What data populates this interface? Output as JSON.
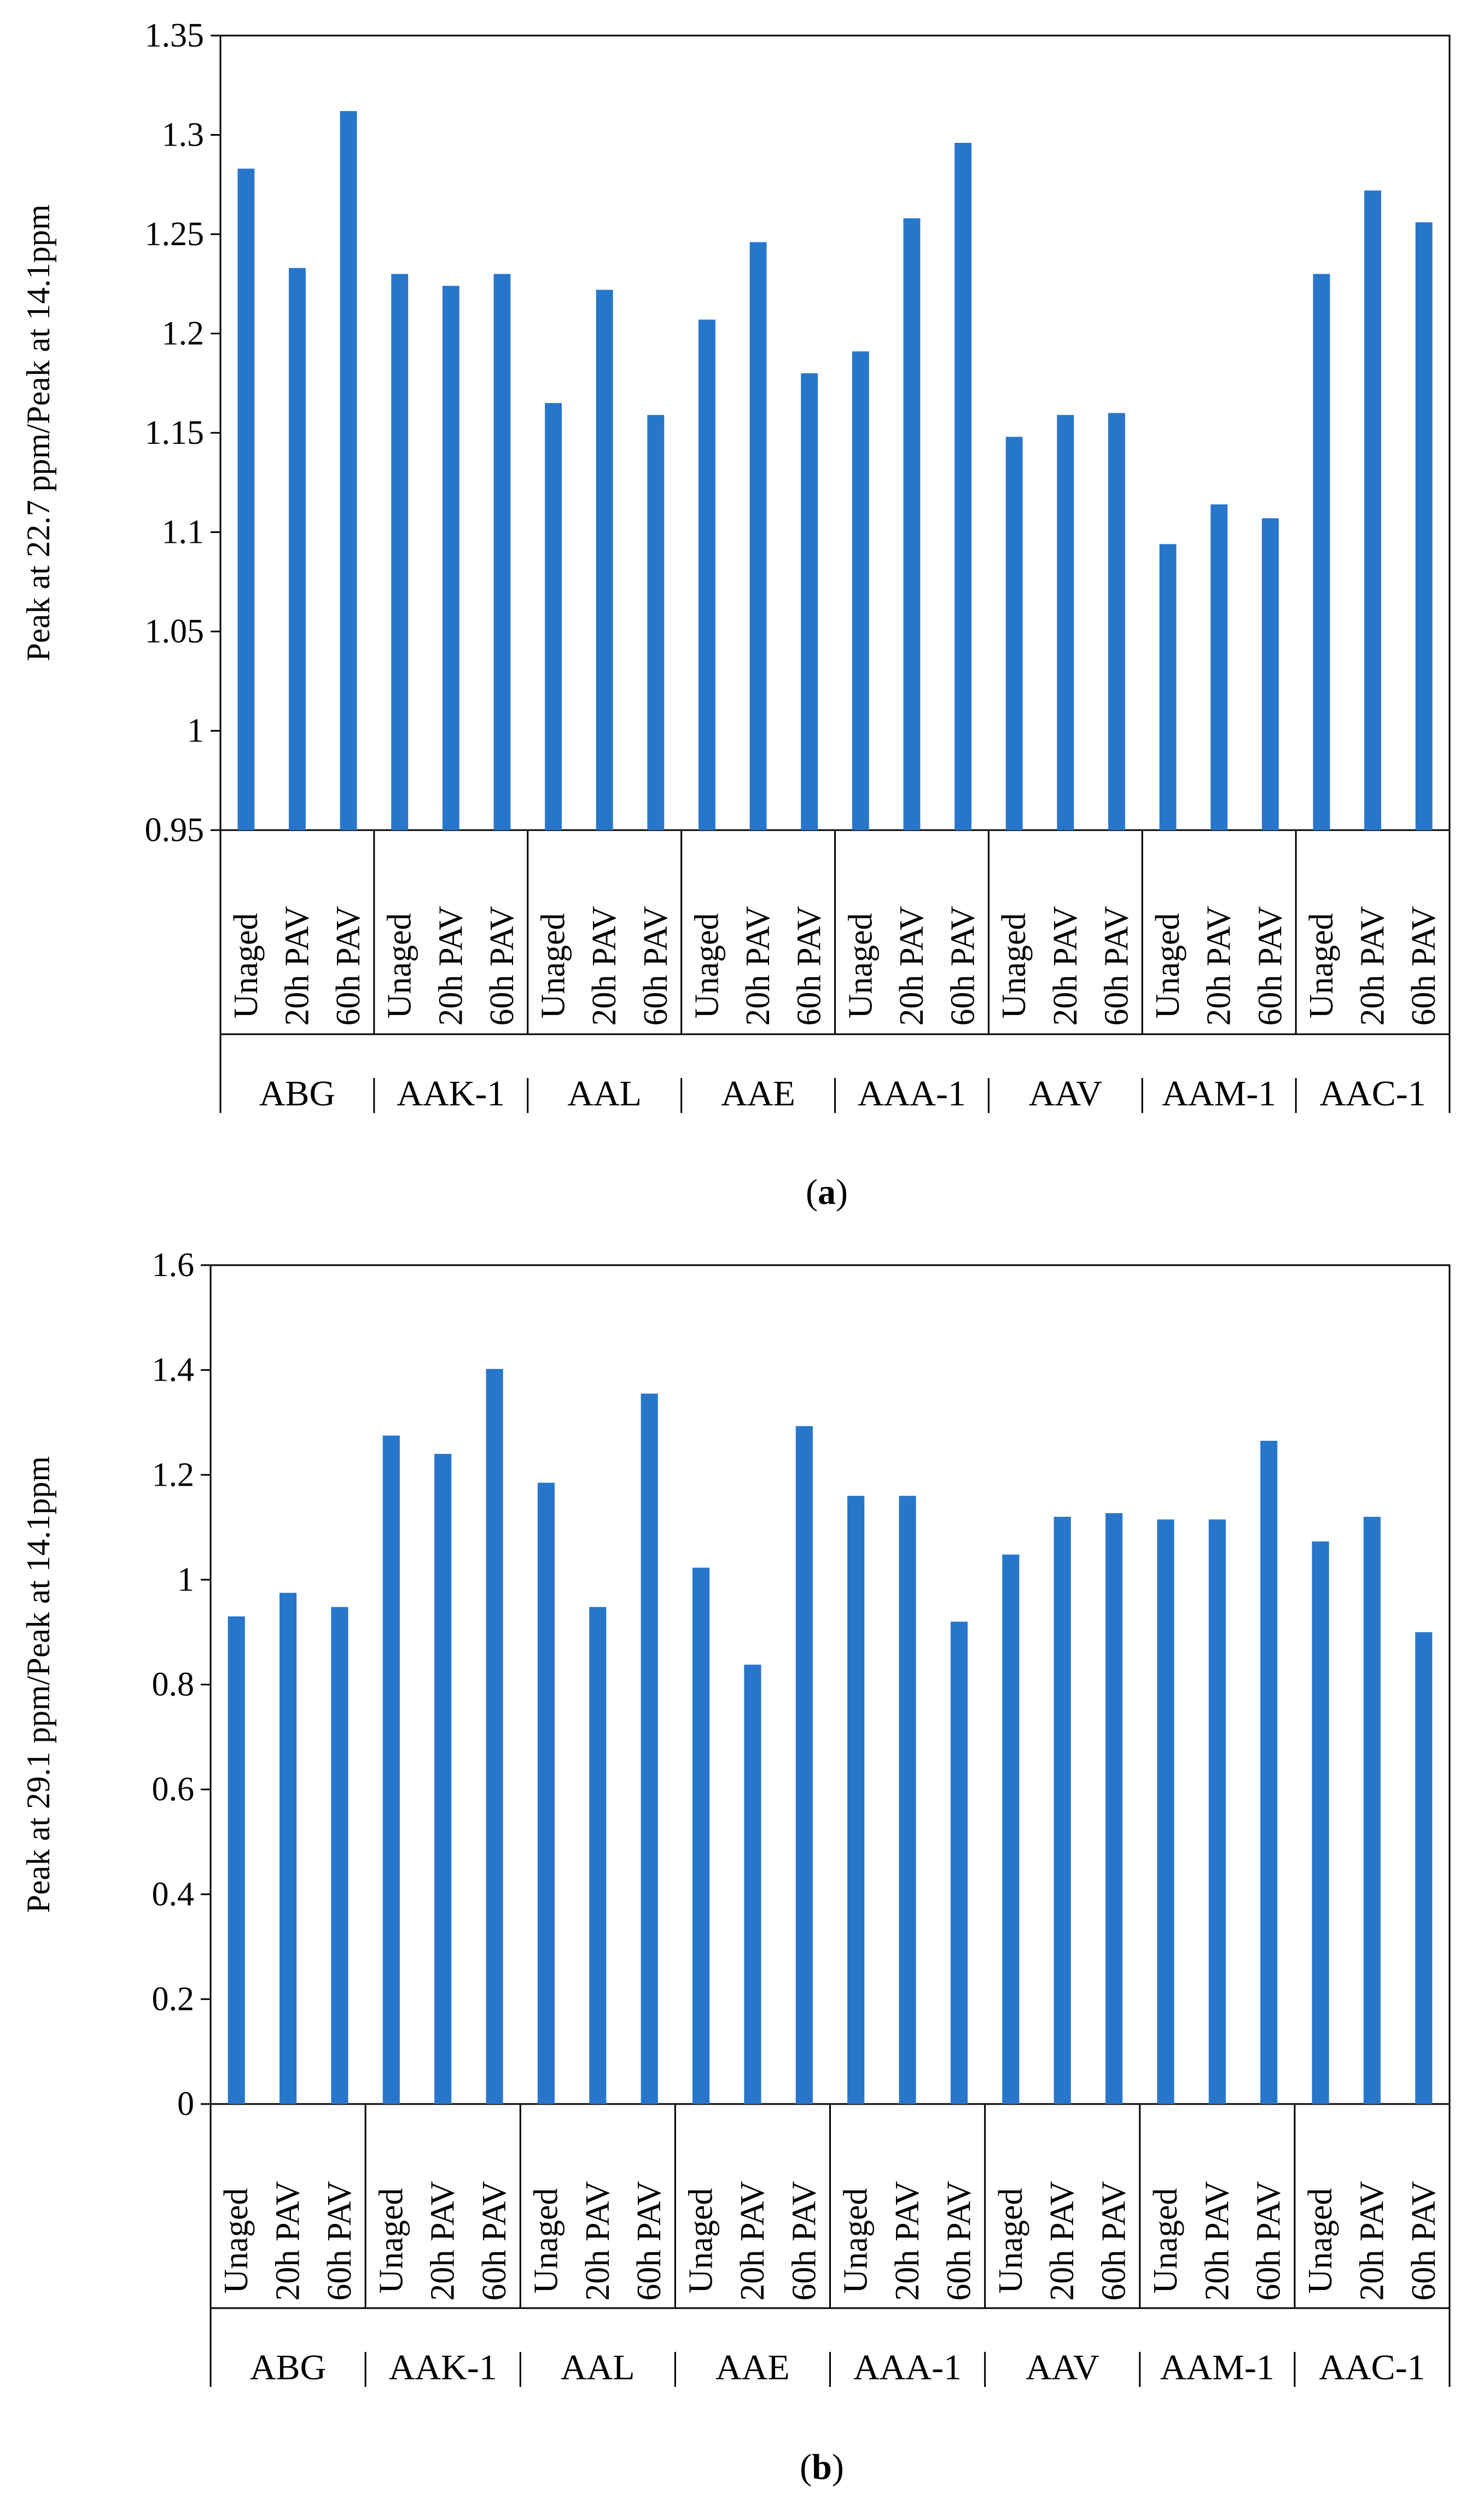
{
  "chart_data": [
    {
      "type": "bar",
      "panel_label": "a",
      "ylabel": "Peak at 22.7 ppm/Peak at 14.1ppm",
      "ylim": [
        0.95,
        1.35
      ],
      "yticks": [
        "0.95",
        "1",
        "1.05",
        "1.1",
        "1.15",
        "1.2",
        "1.25",
        "1.3",
        "1.35"
      ],
      "groups": [
        "ABG",
        "AAK-1",
        "AAL",
        "AAE",
        "AAA-1",
        "AAV",
        "AAM-1",
        "AAC-1"
      ],
      "categories": [
        "Unaged",
        "20h PAV",
        "60h PAV"
      ],
      "values": [
        [
          1.283,
          1.233,
          1.312
        ],
        [
          1.23,
          1.224,
          1.23
        ],
        [
          1.165,
          1.222,
          1.159
        ],
        [
          1.207,
          1.246,
          1.18
        ],
        [
          1.191,
          1.258,
          1.296
        ],
        [
          1.148,
          1.159,
          1.16
        ],
        [
          1.094,
          1.114,
          1.107
        ],
        [
          1.23,
          1.272,
          1.256
        ]
      ],
      "bar_color": "#2876cc",
      "grid": false
    },
    {
      "type": "bar",
      "panel_label": "b",
      "ylabel": "Peak at 29.1 ppm/Peak at 14.1ppm",
      "ylim": [
        0,
        1.6
      ],
      "yticks": [
        "0",
        "0.2",
        "0.4",
        "0.6",
        "0.8",
        "1",
        "1.2",
        "1.4",
        "1.6"
      ],
      "groups": [
        "ABG",
        "AAK-1",
        "AAL",
        "AAE",
        "AAA-1",
        "AAV",
        "AAM-1",
        "AAC-1"
      ],
      "categories": [
        "Unaged",
        "20h PAV",
        "60h PAV"
      ],
      "values": [
        [
          0.93,
          0.975,
          0.948
        ],
        [
          1.275,
          1.24,
          1.402
        ],
        [
          1.185,
          0.948,
          1.355
        ],
        [
          1.023,
          0.838,
          1.293
        ],
        [
          1.16,
          1.16,
          0.92
        ],
        [
          1.048,
          1.12,
          1.127
        ],
        [
          1.115,
          1.115,
          1.265
        ],
        [
          1.073,
          1.12,
          0.9
        ]
      ],
      "bar_color": "#2876cc",
      "grid": false
    }
  ]
}
